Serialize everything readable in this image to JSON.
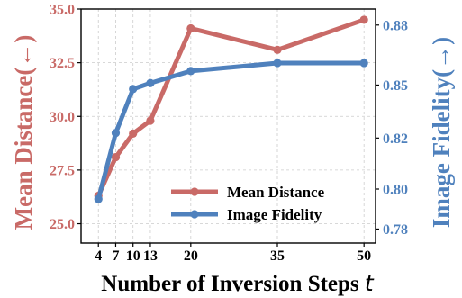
{
  "chart_data": {
    "type": "line",
    "x": [
      4,
      7,
      10,
      13,
      20,
      35,
      50
    ],
    "xticks": [
      4,
      7,
      10,
      13,
      20,
      35,
      50
    ],
    "xtick_labels": [
      "4",
      "7",
      "10",
      "13",
      "20",
      "35",
      "50"
    ],
    "xlabel_main": "Number of Inversion Steps ",
    "xlabel_var": "t",
    "ylabel_left": "Mean Distance(←)",
    "ylabel_right": "Image Fidelity(→)",
    "ylim_left": [
      24.1,
      35.0
    ],
    "ylim_right": [
      0.77,
      0.887
    ],
    "yticks_left": [
      "25.0",
      "27.5",
      "30.0",
      "32.5",
      "35.0"
    ],
    "yticks_left_values": [
      25.0,
      27.5,
      30.0,
      32.5,
      35.0
    ],
    "yticks_right": [
      "0.78",
      "0.80",
      "0.82",
      "0.85",
      "0.88"
    ],
    "yticks_right_values": [
      0.777,
      0.797,
      0.8225,
      0.849,
      0.879
    ],
    "grid": true,
    "legend_position": "lower-right",
    "series": [
      {
        "name": "Mean Distance",
        "axis": "left",
        "color": "#c96a67",
        "values": [
          26.3,
          28.1,
          29.2,
          29.8,
          34.1,
          33.1,
          34.5
        ]
      },
      {
        "name": "Image Fidelity",
        "axis": "right",
        "color": "#4f81bd",
        "values": [
          0.792,
          0.825,
          0.847,
          0.85,
          0.856,
          0.86,
          0.86
        ]
      }
    ],
    "colors": {
      "left_axis": "#c96a67",
      "right_axis": "#4f81bd",
      "grid": "#cccccc"
    }
  }
}
